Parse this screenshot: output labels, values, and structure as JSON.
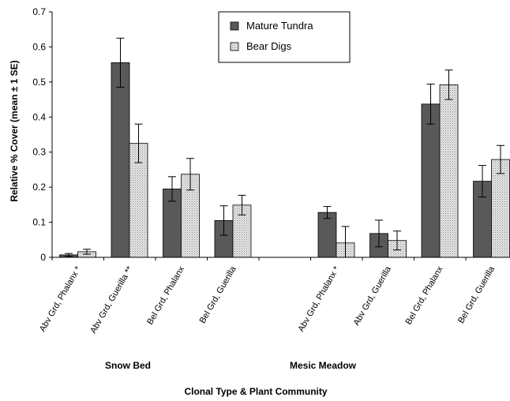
{
  "chart_data": {
    "type": "bar",
    "title": "",
    "xlabel": "Clonal Type & Plant Community",
    "ylabel": "Relative % Cover (mean ± 1 SE)",
    "ylim": [
      0,
      0.7
    ],
    "yticks": [
      "0",
      "0.1",
      "0.2",
      "0.3",
      "0.4",
      "0.5",
      "0.6",
      "0.7"
    ],
    "legend_position": "top-center",
    "grid": false,
    "groups": [
      {
        "label": "Snow Bed",
        "categories": [
          "Abv Grd, Phalanx *",
          "Abv Grd, Guerilla **",
          "Bel Grd, Phalanx",
          "Bel Grd, Guerilla"
        ]
      },
      {
        "label": "Mesic Meadow",
        "categories": [
          "Abv Grd, Phalanx *",
          "Abv Grd, Guerilla",
          "Bel Grd, Phalanx",
          "Bel Grd, Guerilla"
        ]
      }
    ],
    "categories": [
      "Abv Grd, Phalanx *",
      "Abv Grd, Guerilla **",
      "Bel Grd, Phalanx",
      "Bel Grd, Guerilla",
      "Abv Grd, Phalanx *",
      "Abv Grd, Guerilla",
      "Bel Grd, Phalanx",
      "Bel Grd, Guerilla"
    ],
    "series": [
      {
        "name": "Mature Tundra",
        "color": "#595959",
        "pattern": "solid",
        "values": [
          0.007,
          0.555,
          0.195,
          0.105,
          0.128,
          0.068,
          0.437,
          0.217
        ],
        "errors": [
          0.004,
          0.07,
          0.035,
          0.042,
          0.017,
          0.038,
          0.057,
          0.045
        ]
      },
      {
        "name": "Bear Digs",
        "color": "#d9d9d9",
        "pattern": "dotted",
        "values": [
          0.016,
          0.325,
          0.237,
          0.149,
          0.041,
          0.048,
          0.492,
          0.279
        ],
        "errors": [
          0.007,
          0.055,
          0.045,
          0.028,
          0.047,
          0.027,
          0.042,
          0.04
        ]
      }
    ]
  }
}
